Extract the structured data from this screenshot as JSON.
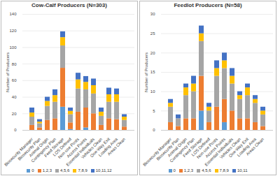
{
  "chart_data": [
    {
      "type": "bar",
      "stacked": true,
      "title": "Cow-Calf Producers (N=303)",
      "ylabel": "Number of Producers",
      "legend": "bottom",
      "grid": true,
      "categories": [
        "Biosecurity Manager",
        "Biosecurity Plan",
        "Animal Origin",
        "Contingency Plan",
        "Feed Storage",
        "LOS Defined",
        "Non-use Posts",
        "Access Points",
        "Essential Individuals",
        "Vehicles Clean",
        "One-Way Exit",
        "Loading Area",
        "Areas Clean"
      ],
      "series": [
        {
          "name": "0",
          "color": "#5b9bd5",
          "values": [
            0,
            0,
            0,
            0,
            28,
            1,
            0,
            3,
            0,
            0,
            0,
            0,
            0
          ]
        },
        {
          "name": "1,2,3",
          "color": "#ed7d31",
          "values": [
            6,
            3,
            12,
            14,
            47,
            8,
            22,
            24,
            20,
            6,
            14,
            13,
            4
          ]
        },
        {
          "name": "4,5,6",
          "color": "#a5a5a5",
          "values": [
            10,
            5,
            17,
            20,
            27,
            10,
            28,
            22,
            24,
            11,
            20,
            21,
            8
          ]
        },
        {
          "name": "7,8,9",
          "color": "#ffc000",
          "values": [
            5,
            2,
            6,
            8,
            10,
            4,
            11,
            9,
            10,
            5,
            9,
            9,
            4
          ]
        },
        {
          "name": "10,11,12",
          "color": "#4472c4",
          "values": [
            6,
            3,
            5,
            7,
            7,
            4,
            8,
            7,
            8,
            5,
            8,
            7,
            3
          ]
        }
      ],
      "ylim": [
        0,
        140
      ],
      "yticks": [
        0,
        20,
        40,
        60,
        80,
        100,
        120,
        140
      ]
    },
    {
      "type": "bar",
      "stacked": true,
      "title": "Feedlot Producers (N=58)",
      "ylabel": "Number of Producers",
      "legend": "bottom",
      "grid": true,
      "categories": [
        "Biosecurity Manager",
        "Biosecurity Plan",
        "Animal Origin",
        "Contingency Plan",
        "Feed Storage",
        "LOS Defined",
        "Non-use Posts",
        "Access Points",
        "Essential Individuals",
        "Vehicles Clean",
        "One-Way Exit",
        "Loading Area",
        "Areas Clean"
      ],
      "series": [
        {
          "name": "0",
          "color": "#5b9bd5",
          "values": [
            0,
            0,
            0,
            0,
            5,
            0,
            0,
            2,
            0,
            0,
            0,
            0,
            0
          ]
        },
        {
          "name": "1,2,3",
          "color": "#ed7d31",
          "values": [
            2,
            1,
            3,
            3,
            9,
            2,
            6,
            6,
            5,
            3,
            3,
            2,
            1
          ]
        },
        {
          "name": "4,5,6",
          "color": "#a5a5a5",
          "values": [
            4,
            2,
            6,
            7,
            9,
            3,
            8,
            8,
            7,
            5,
            6,
            5,
            3
          ]
        },
        {
          "name": "7,8,9",
          "color": "#ffc000",
          "values": [
            1,
            0,
            2,
            2,
            2,
            1,
            2,
            2,
            2,
            1,
            2,
            1,
            1
          ]
        },
        {
          "name": "10,11",
          "color": "#4472c4",
          "values": [
            1,
            1,
            1,
            2,
            2,
            1,
            2,
            2,
            2,
            1,
            1,
            1,
            1
          ]
        }
      ],
      "ylim": [
        0,
        30
      ],
      "yticks": [
        0,
        5,
        10,
        15,
        20,
        25,
        30
      ]
    }
  ]
}
